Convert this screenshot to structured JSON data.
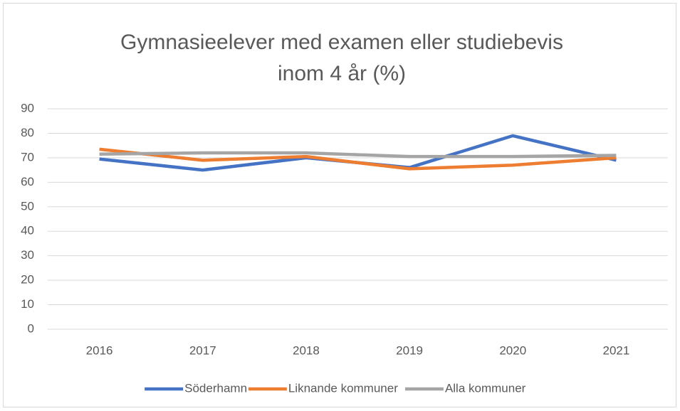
{
  "chart_data": {
    "type": "line",
    "title": "Gymnasieelever med examen eller studiebevis inom 4 år (%)",
    "categories": [
      "2016",
      "2017",
      "2018",
      "2019",
      "2020",
      "2021"
    ],
    "series": [
      {
        "name": "Söderhamn",
        "color": "#4472c4",
        "values": [
          69.5,
          65,
          70,
          66,
          79,
          69
        ]
      },
      {
        "name": "Liknande kommuner",
        "color": "#ed7d31",
        "values": [
          73.5,
          69,
          70.5,
          65.5,
          67,
          70
        ]
      },
      {
        "name": "Alla kommuner",
        "color": "#a5a5a5",
        "values": [
          71.5,
          72,
          72,
          70.5,
          70.5,
          71
        ]
      }
    ],
    "ylim": [
      0,
      90
    ],
    "yticks": [
      0,
      10,
      20,
      30,
      40,
      50,
      60,
      70,
      80,
      90
    ],
    "grid": true,
    "legend": "bottom"
  }
}
